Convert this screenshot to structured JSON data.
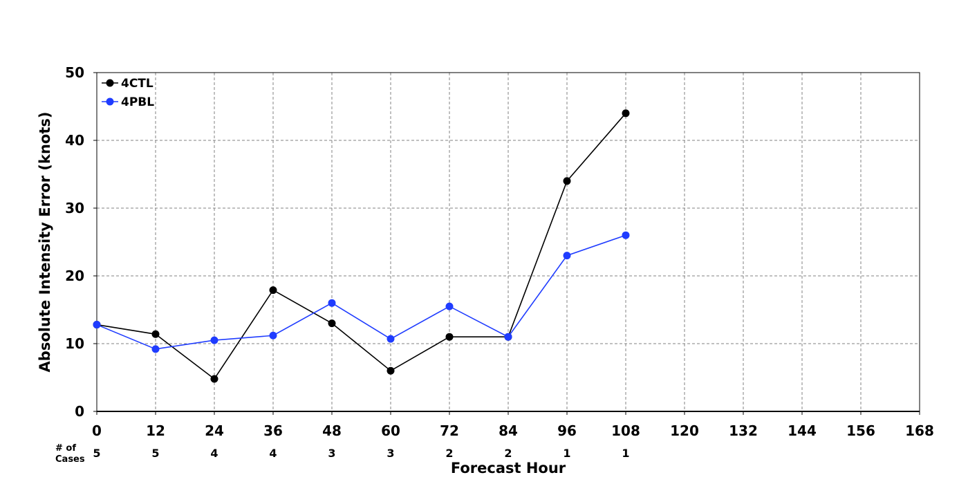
{
  "chart_data": {
    "type": "line",
    "title": "",
    "xlabel": "Forecast Hour",
    "ylabel": "Absolute Intensity Error (knots)",
    "xlim": [
      0,
      168
    ],
    "ylim": [
      0,
      50
    ],
    "x_ticks": [
      0,
      12,
      24,
      36,
      48,
      60,
      72,
      84,
      96,
      108,
      120,
      132,
      144,
      156,
      168
    ],
    "y_ticks": [
      0,
      10,
      20,
      30,
      40,
      50
    ],
    "grid": true,
    "legend_position": "top-left",
    "series": [
      {
        "name": "4CTL",
        "color": "#000000",
        "x": [
          0,
          12,
          24,
          36,
          48,
          60,
          72,
          84,
          96,
          108
        ],
        "values": [
          12.8,
          11.4,
          4.8,
          17.9,
          13.0,
          6.0,
          11.0,
          11.0,
          34.0,
          44.0
        ]
      },
      {
        "name": "4PBL",
        "color": "#1f3cff",
        "x": [
          0,
          12,
          24,
          36,
          48,
          60,
          72,
          84,
          96,
          108
        ],
        "values": [
          12.8,
          9.2,
          10.5,
          11.2,
          16.0,
          10.7,
          15.5,
          11.0,
          23.0,
          26.0
        ]
      }
    ],
    "cases": {
      "label_line1": "# of",
      "label_line2": "Cases",
      "x": [
        0,
        12,
        24,
        36,
        48,
        60,
        72,
        84,
        96,
        108
      ],
      "values": [
        "5",
        "5",
        "4",
        "4",
        "3",
        "3",
        "2",
        "2",
        "1",
        "1"
      ]
    }
  }
}
